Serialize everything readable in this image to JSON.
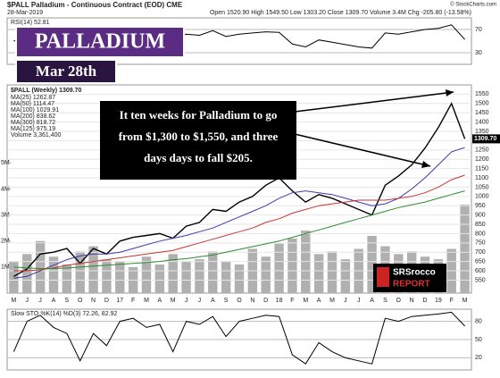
{
  "chart_data": {
    "type": "line",
    "title": "$PALL Palladium - Continuous Contract (EOD) CME",
    "date": "28-Mar-2019",
    "quote": "Open 1520.90  High 1549.50  Low 1303.20  Close 1309.70  Volume 3.4M  Chg -205.80 (-13.58%)",
    "copyright": "© StockCharts.com",
    "banner": "PALLADIUM",
    "banner_date": "Mar 28th",
    "panel_label": "$PALL (Weekly) 1309.70",
    "annotation": [
      "It ten weeks for Palladium to go",
      "from $1,300 to $1,550, and three",
      "days days to fall $205."
    ],
    "logo": [
      "SRSrocco",
      "REPORT"
    ],
    "legend_notes": [
      "MA(200) 838.62",
      "MA(300) 818.72",
      "MA(125) 975.19",
      "Volume 3,361,400"
    ],
    "categories": [
      "M",
      "J",
      "J",
      "A",
      "S",
      "O",
      "N",
      "D",
      "17",
      "F",
      "M",
      "A",
      "M",
      "J",
      "J",
      "A",
      "S",
      "O",
      "N",
      "D",
      "18",
      "F",
      "M",
      "A",
      "M",
      "J",
      "J",
      "A",
      "S",
      "O",
      "N",
      "D",
      "19",
      "F",
      "M"
    ],
    "series": [
      {
        "name": "$PALL (Weekly)",
        "color": "#000000",
        "values": [
          570,
          610,
          690,
          700,
          720,
          640,
          720,
          690,
          760,
          780,
          790,
          800,
          775,
          840,
          860,
          930,
          920,
          970,
          1000,
          1060,
          1100,
          1030,
          970,
          1010,
          990,
          960,
          930,
          900,
          1060,
          1110,
          1170,
          1260,
          1370,
          1500,
          1309.7
        ],
        "value_labels_last": "1309.70"
      },
      {
        "name": "MA(25) 1262.87",
        "color": "#3c3caa",
        "values": [
          560,
          570,
          600,
          630,
          660,
          680,
          690,
          690,
          700,
          720,
          740,
          760,
          775,
          790,
          810,
          830,
          860,
          890,
          920,
          950,
          990,
          1020,
          1030,
          1020,
          1010,
          990,
          970,
          950,
          960,
          990,
          1040,
          1100,
          1170,
          1240,
          1262.87
        ]
      },
      {
        "name": "MA(50) 1114.47",
        "color": "#cc3333",
        "values": [
          600,
          600,
          605,
          615,
          630,
          640,
          650,
          660,
          670,
          680,
          690,
          700,
          710,
          730,
          750,
          770,
          790,
          810,
          830,
          860,
          880,
          910,
          930,
          950,
          960,
          970,
          980,
          980,
          980,
          990,
          1000,
          1020,
          1050,
          1090,
          1114.47
        ]
      },
      {
        "name": "MA(100) 1029.91",
        "color": "#2e8b2e",
        "values": [
          620,
          615,
          612,
          612,
          615,
          620,
          625,
          630,
          635,
          640,
          645,
          650,
          660,
          665,
          675,
          685,
          700,
          715,
          730,
          745,
          760,
          780,
          800,
          820,
          840,
          860,
          880,
          900,
          920,
          940,
          955,
          970,
          990,
          1010,
          1029.91
        ]
      }
    ],
    "ylim": [
      480,
      1600
    ],
    "yticks": [
      550,
      600,
      650,
      700,
      750,
      800,
      850,
      900,
      950,
      1000,
      1050,
      1100,
      1150,
      1200,
      1250,
      1300,
      1350,
      1400,
      1450,
      1500,
      1550
    ],
    "volume": {
      "color": "#b0b0b0",
      "values": [
        1.2,
        1.5,
        2.0,
        1.4,
        1.1,
        1.6,
        1.8,
        1.3,
        1.2,
        1.0,
        1.4,
        1.1,
        1.5,
        1.2,
        1.3,
        1.6,
        1.2,
        1.1,
        1.7,
        1.4,
        1.9,
        2.1,
        2.4,
        1.5,
        1.6,
        1.3,
        1.7,
        2.2,
        1.8,
        1.5,
        1.6,
        1.4,
        1.3,
        1.7,
        3.4
      ],
      "ylim": [
        0,
        8
      ],
      "yticks": [
        {
          "value": 1,
          "label": "1M"
        },
        {
          "value": 2,
          "label": "2M"
        },
        {
          "value": 3,
          "label": "3M"
        },
        {
          "value": 4,
          "label": "4M"
        },
        {
          "value": 5,
          "label": "5M"
        }
      ]
    },
    "rsi": {
      "label": "RSI(14) 52.81",
      "color": "#000000",
      "values": [
        50,
        60,
        70,
        62,
        58,
        42,
        55,
        48,
        60,
        62,
        58,
        60,
        50,
        62,
        60,
        68,
        58,
        62,
        64,
        66,
        65,
        45,
        40,
        52,
        48,
        44,
        40,
        38,
        64,
        62,
        66,
        70,
        72,
        78,
        52.81
      ],
      "ylim": [
        10,
        90
      ],
      "yticks": [
        30,
        70
      ]
    },
    "stoch": {
      "label": "Slow STO %K(14) %D(3) 72.26, 82.92",
      "color": "#000000",
      "values": [
        30,
        80,
        90,
        70,
        60,
        15,
        60,
        40,
        80,
        85,
        70,
        75,
        30,
        80,
        75,
        88,
        55,
        80,
        85,
        90,
        88,
        25,
        10,
        45,
        30,
        20,
        15,
        10,
        85,
        80,
        88,
        90,
        92,
        95,
        72.26
      ],
      "ylim": [
        0,
        100
      ],
      "yticks": [
        20,
        50,
        80
      ]
    }
  }
}
